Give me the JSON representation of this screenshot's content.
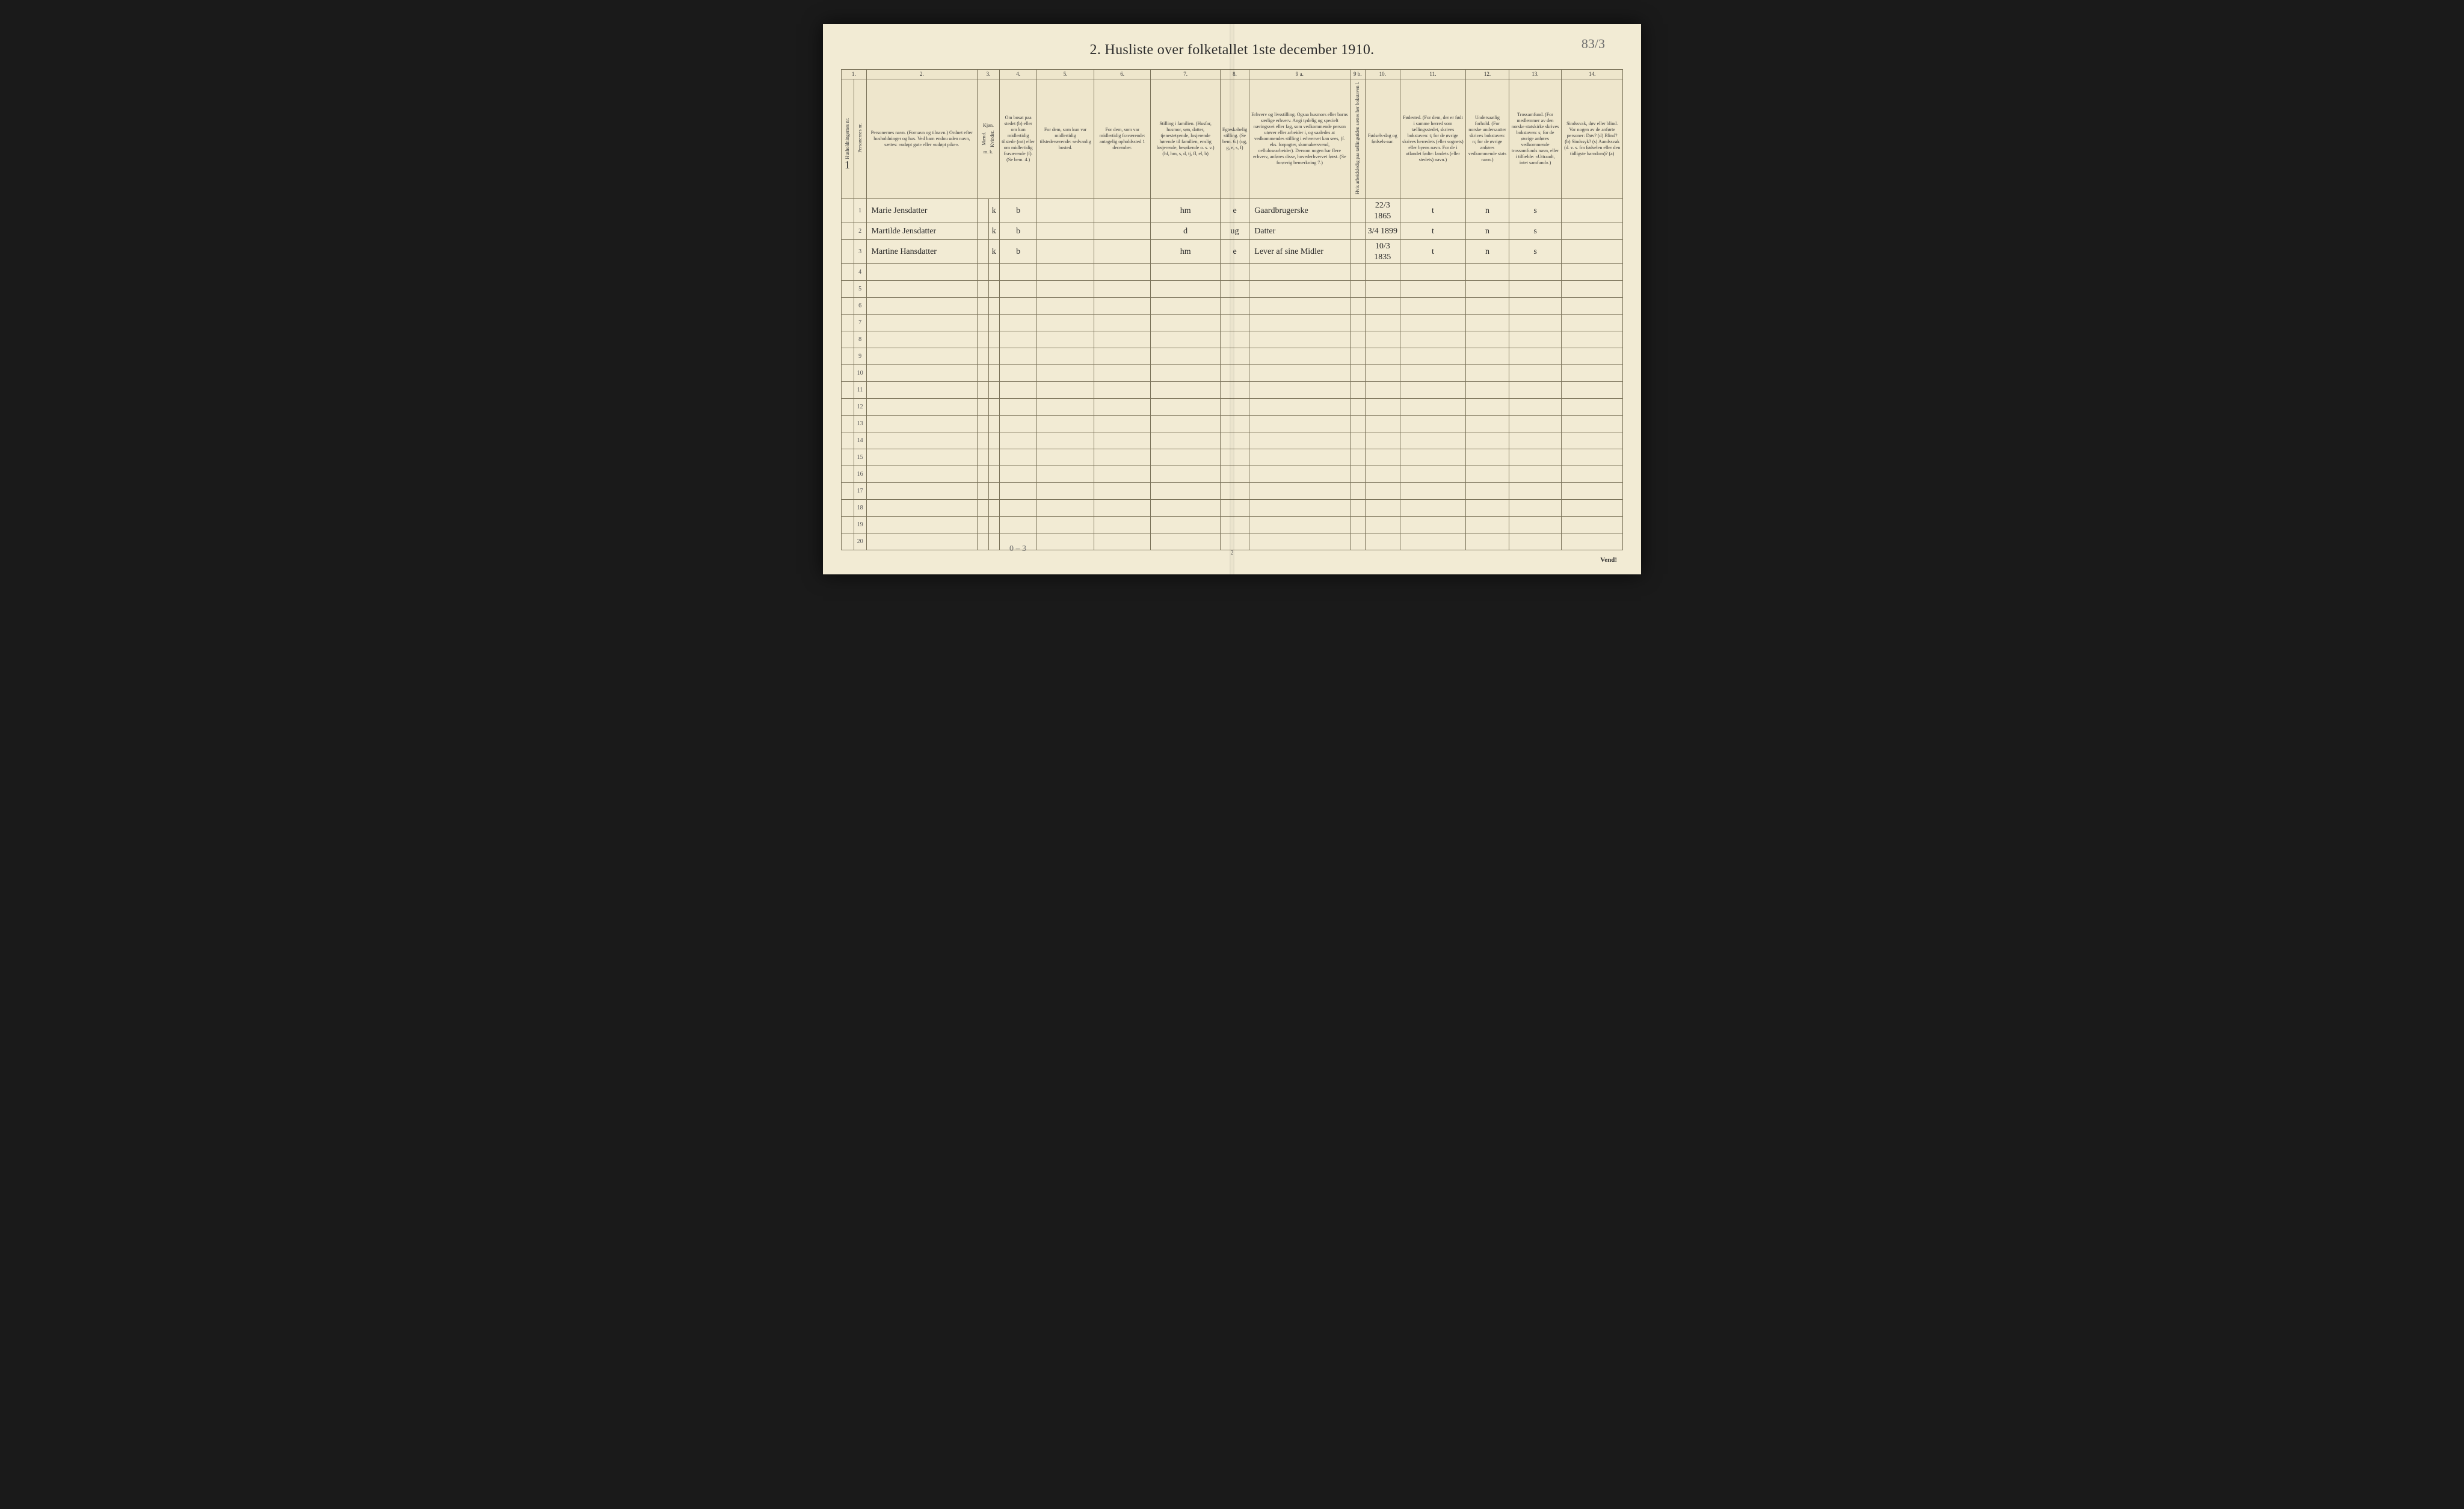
{
  "page": {
    "title": "2.  Husliste over folketallet 1ste december 1910.",
    "annotation_top_right": "83/3",
    "footer": "Vend!",
    "page_number": "2",
    "bottom_annotation": "0 – 3",
    "household_mark": "1"
  },
  "columns": {
    "numbers": [
      "1.",
      "2.",
      "3.",
      "4.",
      "5.",
      "6.",
      "7.",
      "8.",
      "9 a.",
      "9 b.",
      "10.",
      "11.",
      "12.",
      "13.",
      "14."
    ],
    "c1a": "Husholdningernes nr.",
    "c1b": "Personernes nr.",
    "c2": "Personernes navn.\n(Fornavn og tilnavn.)\nOrdnet efter husholdninger og hus.\nVed barn endnu uden navn, sættes: «udøpt gut» eller «udøpt pike».",
    "c3_top": "Kjøn.",
    "c3a": "Mænd.",
    "c3b": "Kvinder.",
    "c3_bottom": "m.   k.",
    "c4": "Om bosat paa stedet (b) eller om kun midlertidig tilstede (mt) eller om midlertidig fraværende (f). (Se bem. 4.)",
    "c5": "For dem, som kun var midlertidig tilstedeværende:\nsedvanlig bosted.",
    "c6": "For dem, som var midlertidig fraværende:\nantagelig opholdssted 1 december.",
    "c7": "Stilling i familien.\n(Husfar, husmor, søn, datter, tjenestetyende, losjerende hørende til familien, enslig losjerende, besøkende o. s. v.)\n(hf, hm, s, d, tj, fl, el, b)",
    "c8": "Egteskabelig stilling.\n(Se bem. 6.)\n(ug, g, e, s, f)",
    "c9a": "Erhverv og livsstilling.\nOgsaa husmors eller barns særlige erhverv. Angi tydelig og specielt næringsvei eller fag, som vedkommende person utøver eller arbeider i, og saaledes at vedkommendes stilling i erhvervet kan sees, (f. eks. forpagter, skomakersvend, cellulosearbeider). Dersom nogen har flere erhverv, anføres disse, hovederhvervet først.\n(Se forøvrig bemerkning 7.)",
    "c9b": "Hvis arbeidsledig paa tællingstiden sættes her bokstaven l.",
    "c10": "Fødsels-dag og fødsels-aar.",
    "c11": "Fødested.\n(For dem, der er født i samme herred som tællingsstedet, skrives bokstaven: t; for de øvrige skrives herredets (eller sognets) eller byens navn. For de i utlandet fødte: landets (eller stedets) navn.)",
    "c12": "Undersaatlig forhold.\n(For norske undersaatter skrives bokstaven: n; for de øvrige anføres vedkommende stats navn.)",
    "c13": "Trossamfund.\n(For medlemmer av den norske statskirke skrives bokstaven: s; for de øvrige anføres vedkommende trossamfunds navn, eller i tilfælde: «Uttraadt, intet samfund».)",
    "c14": "Sindssvak, døv eller blind.\nVar nogen av de anførte personer:\nDøv? (d)\nBlind? (b)\nSindssyk? (s)\nAandssvak (d. v. s. fra fødselen eller den tidligste barndom)? (a)"
  },
  "rows": [
    {
      "num": "1",
      "name": "Marie Jensdatter",
      "sex": "k",
      "res": "b",
      "c5": "",
      "c6": "",
      "fam": "hm",
      "mar": "e",
      "occ": "Gaardbrugerske",
      "c9b": "",
      "dob": "22/3 1865",
      "birthplace": "t",
      "nat": "n",
      "rel": "s",
      "c14": ""
    },
    {
      "num": "2",
      "name": "Martilde Jensdatter",
      "sex": "k",
      "res": "b",
      "c5": "",
      "c6": "",
      "fam": "d",
      "mar": "ug",
      "occ": "Datter",
      "c9b": "",
      "dob": "3/4 1899",
      "birthplace": "t",
      "nat": "n",
      "rel": "s",
      "c14": ""
    },
    {
      "num": "3",
      "name": "Martine Hansdatter",
      "sex": "k",
      "res": "b",
      "c5": "",
      "c6": "",
      "fam": "hm",
      "mar": "e",
      "occ": "Lever af sine Midler",
      "c9b": "",
      "dob": "10/3 1835",
      "birthplace": "t",
      "nat": "n",
      "rel": "s",
      "c14": ""
    }
  ],
  "empty_row_count": 17,
  "row_labels": [
    "1",
    "2",
    "3",
    "4",
    "5",
    "6",
    "7",
    "8",
    "9",
    "10",
    "11",
    "12",
    "13",
    "14",
    "15",
    "16",
    "17",
    "18",
    "19",
    "20"
  ],
  "style": {
    "paper_color": "#f2ebd4",
    "border_color": "#7a7259",
    "ink_color": "#2b2b2b",
    "header_bg": "#eee6cc",
    "title_fontsize": 24,
    "header_fontsize": 8,
    "body_fontsize": 14
  },
  "col_widths_pct": [
    1.8,
    1.8,
    16,
    1.6,
    1.6,
    5.4,
    8.2,
    8.2,
    10,
    4.2,
    14.5,
    2.2,
    5,
    9.5,
    6.2,
    7.6,
    8.8
  ]
}
